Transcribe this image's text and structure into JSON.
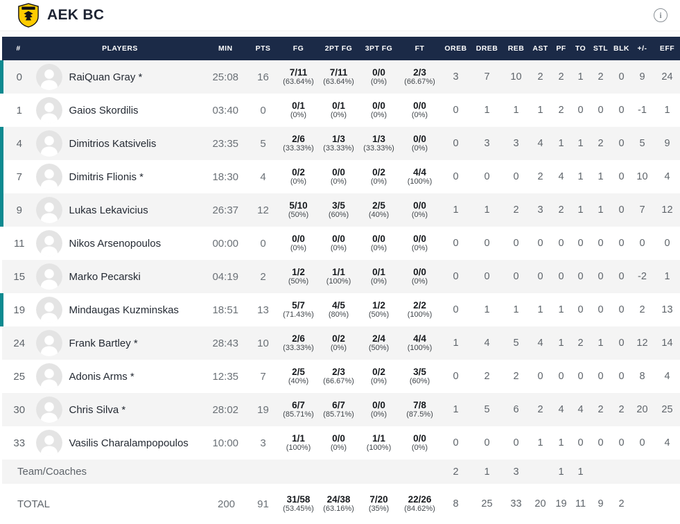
{
  "header": {
    "title": "AEK BC"
  },
  "colors": {
    "header_bg": "#1b2a47",
    "accent_teal": "#0e8a90",
    "row_alt_bg": "#f4f4f4",
    "logo_gold": "#ffcc00",
    "logo_dark": "#141414"
  },
  "table": {
    "columns": [
      "#",
      "PLAYERS",
      "MIN",
      "PTS",
      "FG",
      "2PT FG",
      "3PT FG",
      "FT",
      "OREB",
      "DREB",
      "REB",
      "AST",
      "PF",
      "TO",
      "STL",
      "BLK",
      "+/-",
      "EFF"
    ],
    "players": [
      {
        "num": "0",
        "name": "RaiQuan Gray *",
        "on_court": true,
        "min": "25:08",
        "pts": "16",
        "fg": "7/11",
        "fg_pct": "(63.64%)",
        "fg2": "7/11",
        "fg2_pct": "(63.64%)",
        "fg3": "0/0",
        "fg3_pct": "(0%)",
        "ft": "2/3",
        "ft_pct": "(66.67%)",
        "oreb": "3",
        "dreb": "7",
        "reb": "10",
        "ast": "2",
        "pf": "2",
        "to": "1",
        "stl": "2",
        "blk": "0",
        "pm": "9",
        "eff": "24"
      },
      {
        "num": "1",
        "name": "Gaios Skordilis",
        "on_court": false,
        "min": "03:40",
        "pts": "0",
        "fg": "0/1",
        "fg_pct": "(0%)",
        "fg2": "0/1",
        "fg2_pct": "(0%)",
        "fg3": "0/0",
        "fg3_pct": "(0%)",
        "ft": "0/0",
        "ft_pct": "(0%)",
        "oreb": "0",
        "dreb": "1",
        "reb": "1",
        "ast": "1",
        "pf": "2",
        "to": "0",
        "stl": "0",
        "blk": "0",
        "pm": "-1",
        "eff": "1"
      },
      {
        "num": "4",
        "name": "Dimitrios Katsivelis",
        "on_court": true,
        "min": "23:35",
        "pts": "5",
        "fg": "2/6",
        "fg_pct": "(33.33%)",
        "fg2": "1/3",
        "fg2_pct": "(33.33%)",
        "fg3": "1/3",
        "fg3_pct": "(33.33%)",
        "ft": "0/0",
        "ft_pct": "(0%)",
        "oreb": "0",
        "dreb": "3",
        "reb": "3",
        "ast": "4",
        "pf": "1",
        "to": "1",
        "stl": "2",
        "blk": "0",
        "pm": "5",
        "eff": "9"
      },
      {
        "num": "7",
        "name": "Dimitris Flionis *",
        "on_court": true,
        "min": "18:30",
        "pts": "4",
        "fg": "0/2",
        "fg_pct": "(0%)",
        "fg2": "0/0",
        "fg2_pct": "(0%)",
        "fg3": "0/2",
        "fg3_pct": "(0%)",
        "ft": "4/4",
        "ft_pct": "(100%)",
        "oreb": "0",
        "dreb": "0",
        "reb": "0",
        "ast": "2",
        "pf": "4",
        "to": "1",
        "stl": "1",
        "blk": "0",
        "pm": "10",
        "eff": "4"
      },
      {
        "num": "9",
        "name": "Lukas Lekavicius",
        "on_court": true,
        "min": "26:37",
        "pts": "12",
        "fg": "5/10",
        "fg_pct": "(50%)",
        "fg2": "3/5",
        "fg2_pct": "(60%)",
        "fg3": "2/5",
        "fg3_pct": "(40%)",
        "ft": "0/0",
        "ft_pct": "(0%)",
        "oreb": "1",
        "dreb": "1",
        "reb": "2",
        "ast": "3",
        "pf": "2",
        "to": "1",
        "stl": "1",
        "blk": "0",
        "pm": "7",
        "eff": "12"
      },
      {
        "num": "11",
        "name": "Nikos Arsenopoulos",
        "on_court": false,
        "min": "00:00",
        "pts": "0",
        "fg": "0/0",
        "fg_pct": "(0%)",
        "fg2": "0/0",
        "fg2_pct": "(0%)",
        "fg3": "0/0",
        "fg3_pct": "(0%)",
        "ft": "0/0",
        "ft_pct": "(0%)",
        "oreb": "0",
        "dreb": "0",
        "reb": "0",
        "ast": "0",
        "pf": "0",
        "to": "0",
        "stl": "0",
        "blk": "0",
        "pm": "0",
        "eff": "0"
      },
      {
        "num": "15",
        "name": "Marko Pecarski",
        "on_court": false,
        "min": "04:19",
        "pts": "2",
        "fg": "1/2",
        "fg_pct": "(50%)",
        "fg2": "1/1",
        "fg2_pct": "(100%)",
        "fg3": "0/1",
        "fg3_pct": "(0%)",
        "ft": "0/0",
        "ft_pct": "(0%)",
        "oreb": "0",
        "dreb": "0",
        "reb": "0",
        "ast": "0",
        "pf": "0",
        "to": "0",
        "stl": "0",
        "blk": "0",
        "pm": "-2",
        "eff": "1"
      },
      {
        "num": "19",
        "name": "Mindaugas Kuzminskas",
        "on_court": true,
        "min": "18:51",
        "pts": "13",
        "fg": "5/7",
        "fg_pct": "(71.43%)",
        "fg2": "4/5",
        "fg2_pct": "(80%)",
        "fg3": "1/2",
        "fg3_pct": "(50%)",
        "ft": "2/2",
        "ft_pct": "(100%)",
        "oreb": "0",
        "dreb": "1",
        "reb": "1",
        "ast": "1",
        "pf": "1",
        "to": "0",
        "stl": "0",
        "blk": "0",
        "pm": "2",
        "eff": "13"
      },
      {
        "num": "24",
        "name": "Frank Bartley *",
        "on_court": false,
        "min": "28:43",
        "pts": "10",
        "fg": "2/6",
        "fg_pct": "(33.33%)",
        "fg2": "0/2",
        "fg2_pct": "(0%)",
        "fg3": "2/4",
        "fg3_pct": "(50%)",
        "ft": "4/4",
        "ft_pct": "(100%)",
        "oreb": "1",
        "dreb": "4",
        "reb": "5",
        "ast": "4",
        "pf": "1",
        "to": "2",
        "stl": "1",
        "blk": "0",
        "pm": "12",
        "eff": "14"
      },
      {
        "num": "25",
        "name": "Adonis Arms *",
        "on_court": false,
        "min": "12:35",
        "pts": "7",
        "fg": "2/5",
        "fg_pct": "(40%)",
        "fg2": "2/3",
        "fg2_pct": "(66.67%)",
        "fg3": "0/2",
        "fg3_pct": "(0%)",
        "ft": "3/5",
        "ft_pct": "(60%)",
        "oreb": "0",
        "dreb": "2",
        "reb": "2",
        "ast": "0",
        "pf": "0",
        "to": "0",
        "stl": "0",
        "blk": "0",
        "pm": "8",
        "eff": "4"
      },
      {
        "num": "30",
        "name": "Chris Silva *",
        "on_court": false,
        "min": "28:02",
        "pts": "19",
        "fg": "6/7",
        "fg_pct": "(85.71%)",
        "fg2": "6/7",
        "fg2_pct": "(85.71%)",
        "fg3": "0/0",
        "fg3_pct": "(0%)",
        "ft": "7/8",
        "ft_pct": "(87.5%)",
        "oreb": "1",
        "dreb": "5",
        "reb": "6",
        "ast": "2",
        "pf": "4",
        "to": "4",
        "stl": "2",
        "blk": "2",
        "pm": "20",
        "eff": "25"
      },
      {
        "num": "33",
        "name": "Vasilis Charalampopoulos",
        "on_court": false,
        "min": "10:00",
        "pts": "3",
        "fg": "1/1",
        "fg_pct": "(100%)",
        "fg2": "0/0",
        "fg2_pct": "(0%)",
        "fg3": "1/1",
        "fg3_pct": "(100%)",
        "ft": "0/0",
        "ft_pct": "(0%)",
        "oreb": "0",
        "dreb": "0",
        "reb": "0",
        "ast": "1",
        "pf": "1",
        "to": "0",
        "stl": "0",
        "blk": "0",
        "pm": "0",
        "eff": "4"
      }
    ],
    "team_row": {
      "label": "Team/Coaches",
      "stats": {
        "oreb": "2",
        "dreb": "1",
        "reb": "3",
        "ast": "",
        "pf": "1",
        "to": "1",
        "stl": "",
        "blk": "",
        "pm": "",
        "eff": ""
      }
    },
    "total_row": {
      "label": "TOTAL",
      "min": "200",
      "pts": "91",
      "fg": "31/58",
      "fg_pct": "(53.45%)",
      "fg2": "24/38",
      "fg2_pct": "(63.16%)",
      "fg3": "7/20",
      "fg3_pct": "(35%)",
      "ft": "22/26",
      "ft_pct": "(84.62%)",
      "stats": {
        "oreb": "8",
        "dreb": "25",
        "reb": "33",
        "ast": "20",
        "pf": "19",
        "to": "11",
        "stl": "9",
        "blk": "2",
        "pm": "",
        "eff": ""
      }
    }
  }
}
